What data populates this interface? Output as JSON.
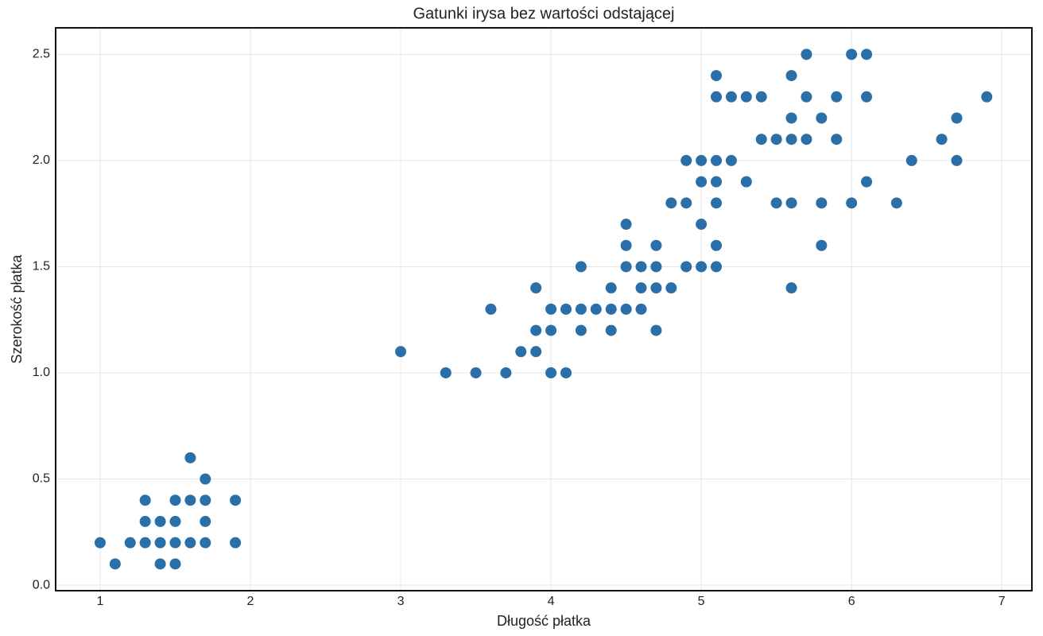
{
  "chart_data": {
    "type": "scatter",
    "title": "Gatunki irysa bez wartości odstającej",
    "xlabel": "Długość płatka",
    "ylabel": "Szerokość płatka",
    "color": "#2a6fa8",
    "grid": true,
    "xlim": [
      0.704,
      7.2
    ],
    "ylim": [
      -0.026,
      2.625
    ],
    "xticks": [
      1,
      2,
      3,
      4,
      5,
      6,
      7
    ],
    "yticks": [
      {
        "value": 0,
        "label": "0.0"
      },
      0.5,
      {
        "value": 1,
        "label": "1.0"
      },
      1.5,
      {
        "value": 2,
        "label": "2.0"
      },
      2.5
    ],
    "x": [
      1.0,
      1.1,
      1.2,
      1.3,
      1.3,
      1.3,
      1.4,
      1.4,
      1.4,
      1.5,
      1.5,
      1.5,
      1.5,
      1.6,
      1.6,
      1.6,
      1.7,
      1.7,
      1.7,
      1.7,
      1.9,
      1.9,
      3.0,
      3.3,
      3.5,
      3.6,
      3.7,
      3.8,
      3.9,
      3.9,
      3.9,
      4.0,
      4.0,
      4.0,
      4.1,
      4.1,
      4.2,
      4.2,
      4.2,
      4.3,
      4.4,
      4.4,
      4.4,
      4.5,
      4.5,
      4.5,
      4.5,
      4.6,
      4.6,
      4.6,
      4.7,
      4.7,
      4.7,
      4.7,
      4.8,
      4.8,
      4.9,
      4.9,
      4.9,
      5.0,
      5.0,
      5.0,
      5.0,
      5.1,
      5.1,
      5.1,
      5.1,
      5.1,
      5.1,
      5.1,
      5.2,
      5.2,
      5.3,
      5.3,
      5.4,
      5.4,
      5.5,
      5.5,
      5.6,
      5.6,
      5.6,
      5.6,
      5.6,
      5.7,
      5.7,
      5.7,
      5.8,
      5.8,
      5.8,
      5.9,
      5.9,
      6.0,
      6.0,
      6.1,
      6.1,
      6.1,
      6.3,
      6.4,
      6.6,
      6.7,
      6.7,
      6.9
    ],
    "values": [
      0.2,
      0.1,
      0.2,
      0.4,
      0.3,
      0.2,
      0.3,
      0.2,
      0.1,
      0.4,
      0.3,
      0.2,
      0.1,
      0.6,
      0.4,
      0.2,
      0.5,
      0.4,
      0.3,
      0.2,
      0.4,
      0.2,
      1.1,
      1.0,
      1.0,
      1.3,
      1.0,
      1.1,
      1.4,
      1.2,
      1.1,
      1.3,
      1.2,
      1.0,
      1.3,
      1.0,
      1.5,
      1.3,
      1.2,
      1.3,
      1.4,
      1.3,
      1.2,
      1.7,
      1.6,
      1.5,
      1.3,
      1.5,
      1.4,
      1.3,
      1.6,
      1.5,
      1.4,
      1.2,
      1.8,
      1.4,
      2.0,
      1.8,
      1.5,
      2.0,
      1.9,
      1.7,
      1.5,
      2.4,
      2.3,
      2.0,
      1.9,
      1.8,
      1.6,
      1.5,
      2.3,
      2.0,
      2.3,
      1.9,
      2.3,
      2.1,
      2.1,
      1.8,
      2.4,
      2.2,
      2.1,
      1.8,
      1.4,
      2.5,
      2.3,
      2.1,
      2.2,
      1.8,
      1.6,
      2.3,
      2.1,
      2.5,
      1.8,
      2.5,
      2.3,
      1.9,
      1.8,
      2.0,
      2.1,
      2.2,
      2.0,
      2.3
    ]
  }
}
